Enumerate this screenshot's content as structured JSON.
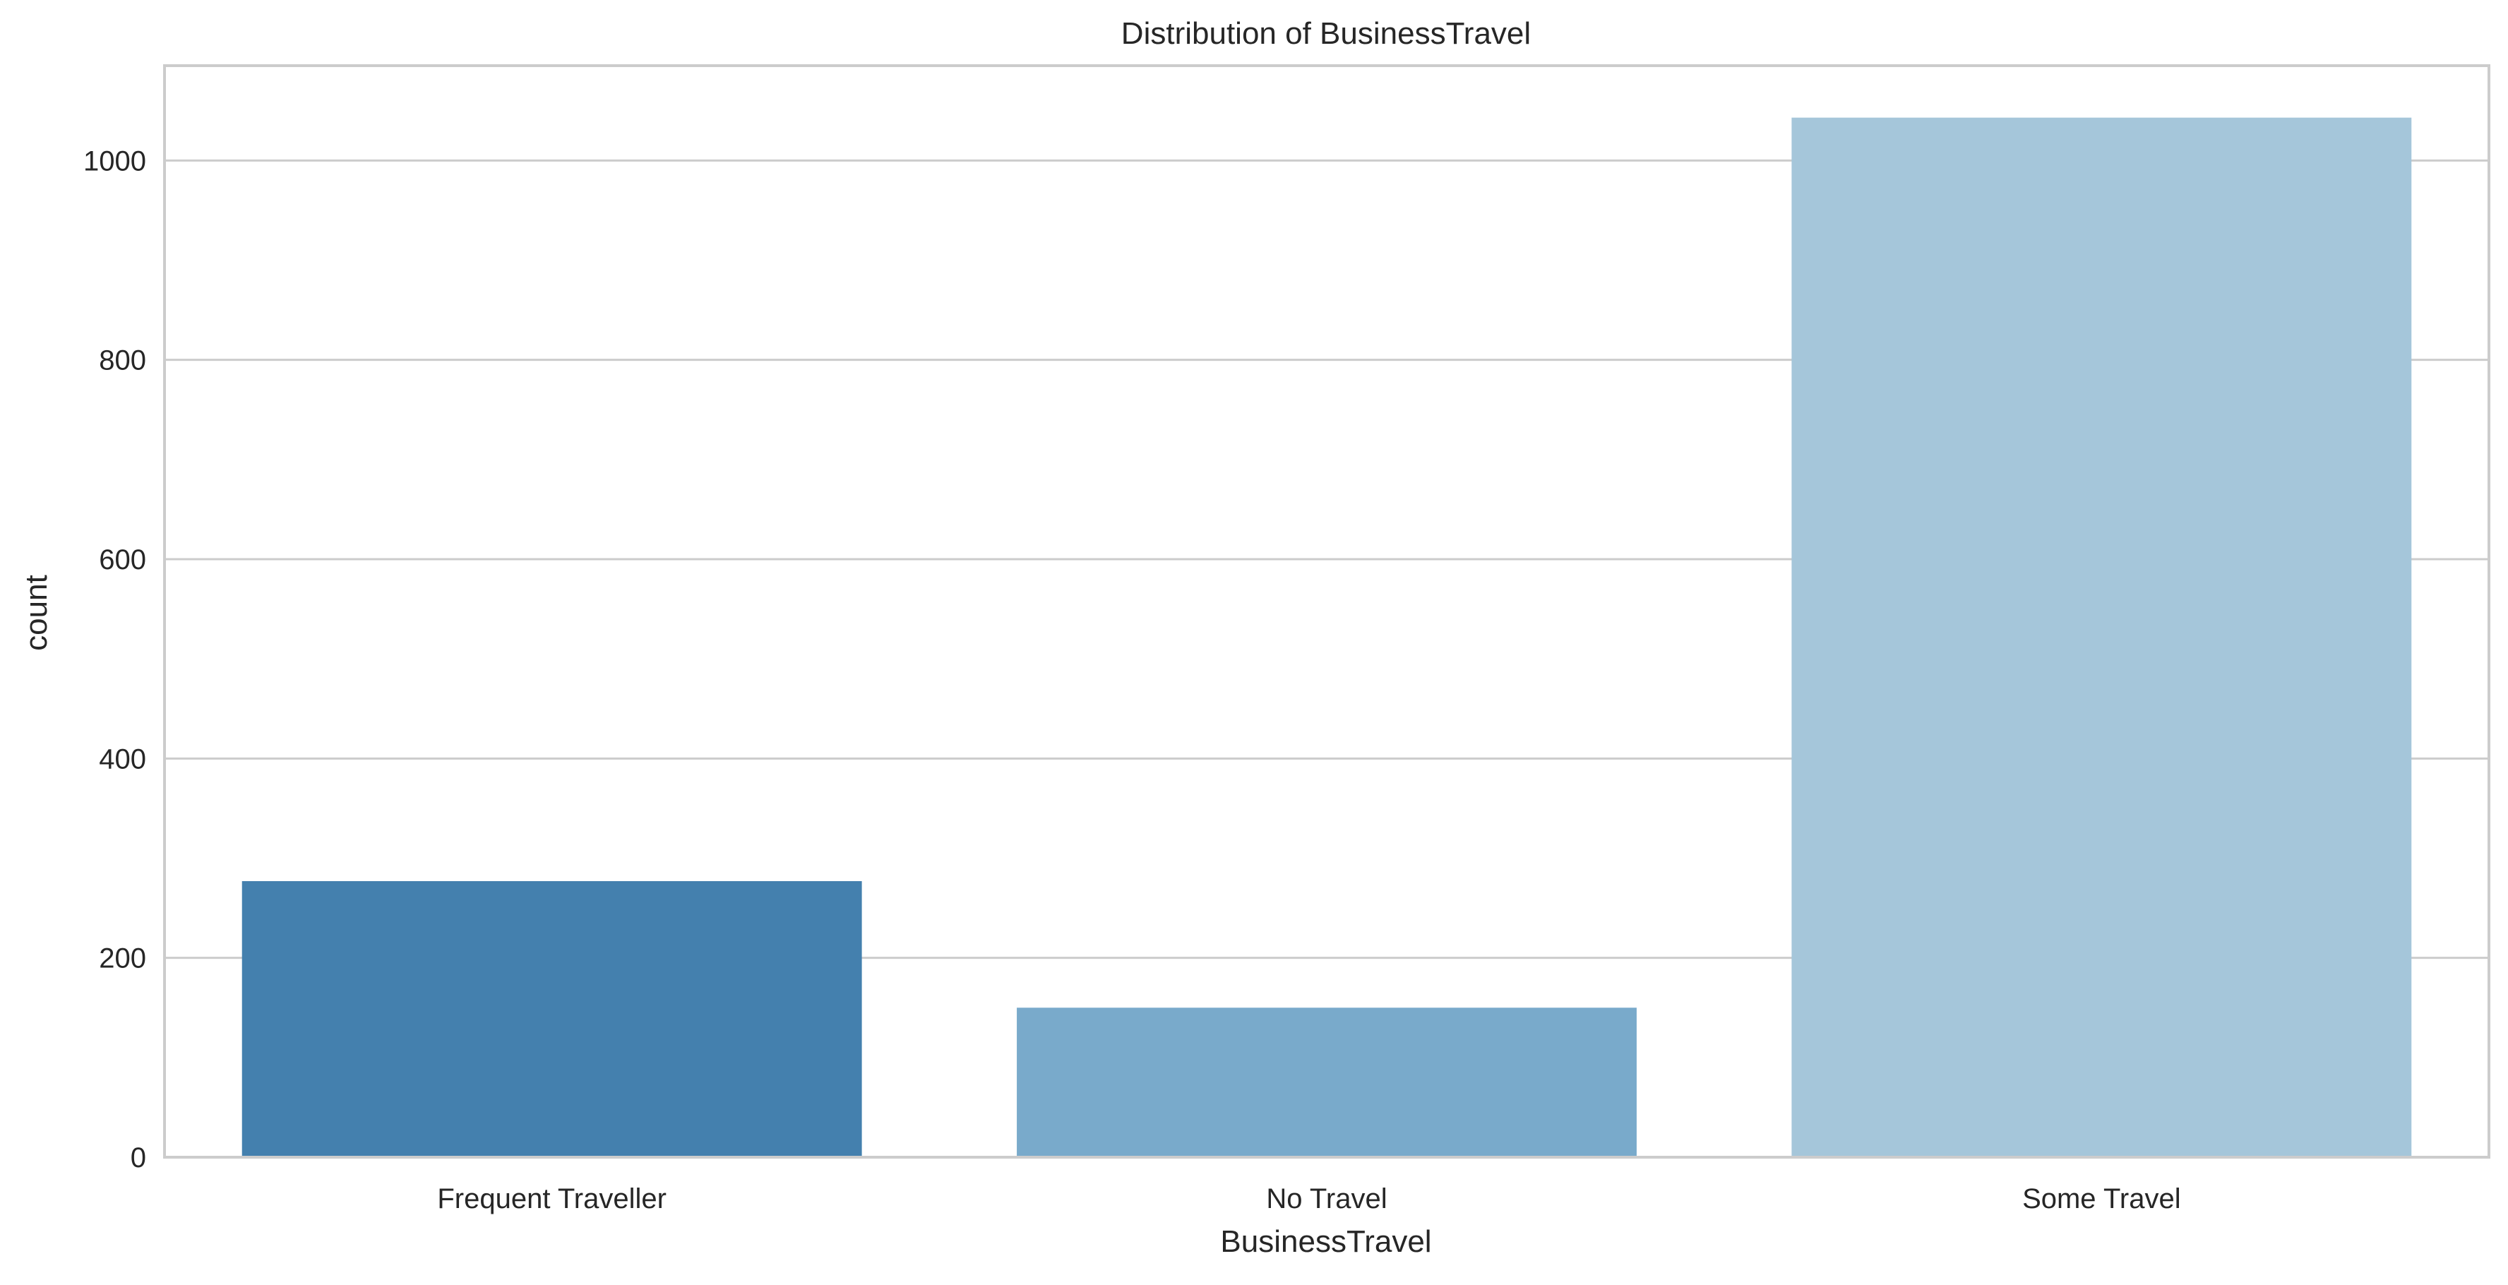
{
  "chart_data": {
    "type": "bar",
    "title": "Distribution of BusinessTravel",
    "xlabel": "BusinessTravel",
    "ylabel": "count",
    "categories": [
      "Frequent Traveller",
      "No Travel",
      "Some Travel"
    ],
    "values": [
      277,
      150,
      1043
    ],
    "colors": [
      "#4480ae",
      "#79aacb",
      "#a5c6da"
    ],
    "ylim": [
      0,
      1095.15
    ],
    "yticks": [
      0,
      200,
      400,
      600,
      800,
      1000
    ],
    "grid": true,
    "grid_axis": "y",
    "legend": "none"
  },
  "style": {
    "background": "#ffffff",
    "grid_color": "#cccccc",
    "spine_color": "#cccccc",
    "text_color": "#262626"
  }
}
